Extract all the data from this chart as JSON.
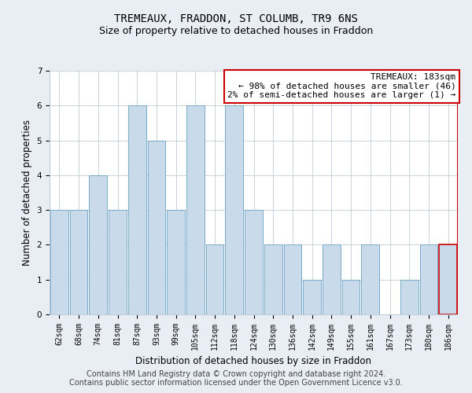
{
  "title": "TREMEAUX, FRADDON, ST COLUMB, TR9 6NS",
  "subtitle": "Size of property relative to detached houses in Fraddon",
  "xlabel": "Distribution of detached houses by size in Fraddon",
  "ylabel": "Number of detached properties",
  "categories": [
    "62sqm",
    "68sqm",
    "74sqm",
    "81sqm",
    "87sqm",
    "93sqm",
    "99sqm",
    "105sqm",
    "112sqm",
    "118sqm",
    "124sqm",
    "130sqm",
    "136sqm",
    "142sqm",
    "149sqm",
    "155sqm",
    "161sqm",
    "167sqm",
    "173sqm",
    "180sqm",
    "186sqm"
  ],
  "values": [
    3,
    3,
    4,
    3,
    6,
    5,
    3,
    6,
    2,
    6,
    3,
    2,
    2,
    1,
    2,
    1,
    2,
    0,
    1,
    2,
    2
  ],
  "bar_color": "#c9daea",
  "bar_edge_color": "#7aaac8",
  "highlight_index": 20,
  "highlight_edge_color": "#cc0000",
  "annotation_text": "TREMEAUX: 183sqm\n← 98% of detached houses are smaller (46)\n2% of semi-detached houses are larger (1) →",
  "annotation_box_color": "#ffffff",
  "annotation_box_edge_color": "#cc0000",
  "ylim": [
    0,
    7
  ],
  "yticks": [
    0,
    1,
    2,
    3,
    4,
    5,
    6,
    7
  ],
  "footer_text": "Contains HM Land Registry data © Crown copyright and database right 2024.\nContains public sector information licensed under the Open Government Licence v3.0.",
  "background_color": "#e8eef4",
  "plot_background": "#ffffff",
  "grid_color": "#c0ccd8",
  "title_fontsize": 10,
  "subtitle_fontsize": 9,
  "axis_label_fontsize": 8.5,
  "tick_fontsize": 7.5,
  "footer_fontsize": 7,
  "ann_fontsize": 8
}
